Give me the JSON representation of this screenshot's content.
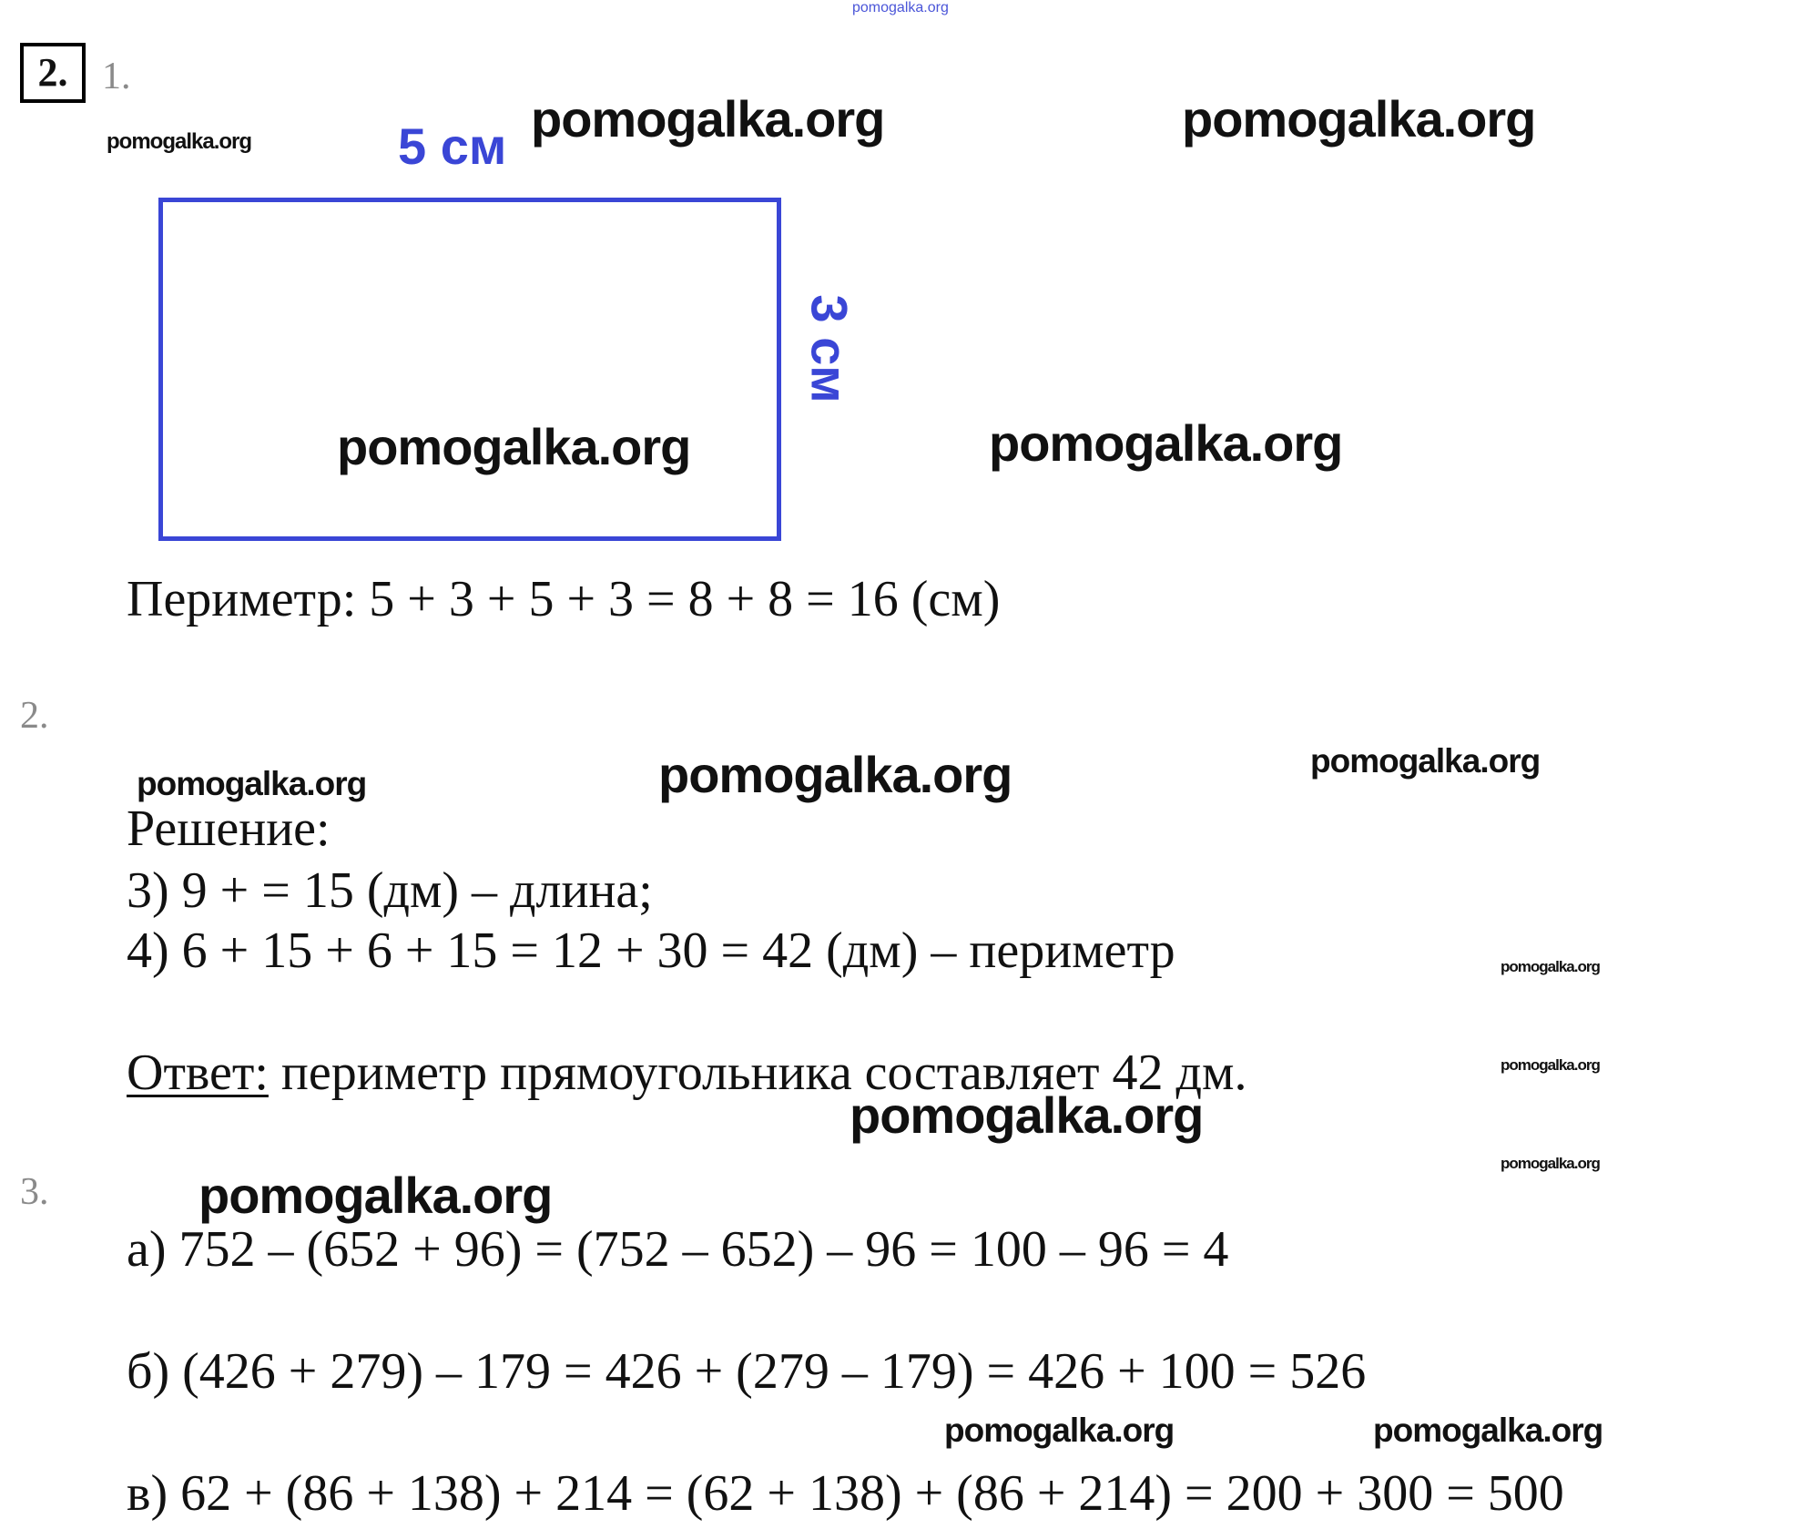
{
  "watermark": "pomogalka.org",
  "colors": {
    "figure": "#3a46d6",
    "text": "#111111",
    "item_number": "#8a8a8a"
  },
  "task_number": "2.",
  "part1": {
    "number": "1.",
    "figure": {
      "type": "rectangle",
      "width_label": "5 см",
      "height_label": "3 см"
    },
    "perimeter": "Периметр: 5 + 3 + 5 + 3 = 8 + 8 = 16 (см)"
  },
  "part2": {
    "number": "2.",
    "solution_label": "Решение:",
    "steps": [
      "3)  9 + = 15 (дм) – длина;",
      "4)  6 + 15 + 6 + 15 = 12 + 30 = 42 (дм) – периметр"
    ],
    "answer_label": "Ответ:",
    "answer_text": " периметр прямоугольника составляет 42 дм."
  },
  "part3": {
    "number": "3.",
    "lines": [
      "а) 752 – (652 + 96) = (752 – 652) – 96 = 100 – 96 = 4",
      "б) (426 + 279) – 179 = 426 + (279 – 179) = 426 + 100 = 526",
      "в) 62 + (86 + 138) + 214 = (62 + 138) + (86 + 214) = 200 + 300 = 500"
    ]
  }
}
